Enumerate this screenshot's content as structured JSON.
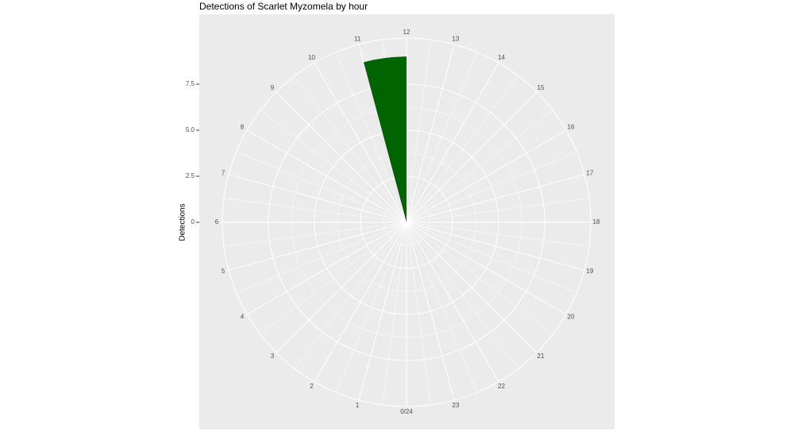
{
  "chart_data": {
    "type": "histogram",
    "title": "Detections of Scarlet Myzomela by hour",
    "y_label": "Detections",
    "bins": [
      11,
      12
    ],
    "values": [
      9
    ],
    "color": "#006400",
    "xlim": [
      0,
      24
    ],
    "xticks": [
      {
        "value": 0,
        "label": "0/24"
      },
      1,
      2,
      3,
      4,
      5,
      6,
      7,
      8,
      9,
      10,
      11,
      12,
      13,
      14,
      15,
      16,
      17,
      18,
      19,
      20,
      21,
      22,
      23
    ],
    "ylim": [
      0,
      10
    ],
    "yticks": [
      0,
      {
        "value": 2.5,
        "label": "2.5"
      },
      {
        "value": 5,
        "label": "5.0"
      },
      {
        "value": 7.5,
        "label": "7.5"
      }
    ],
    "grid": true
  }
}
